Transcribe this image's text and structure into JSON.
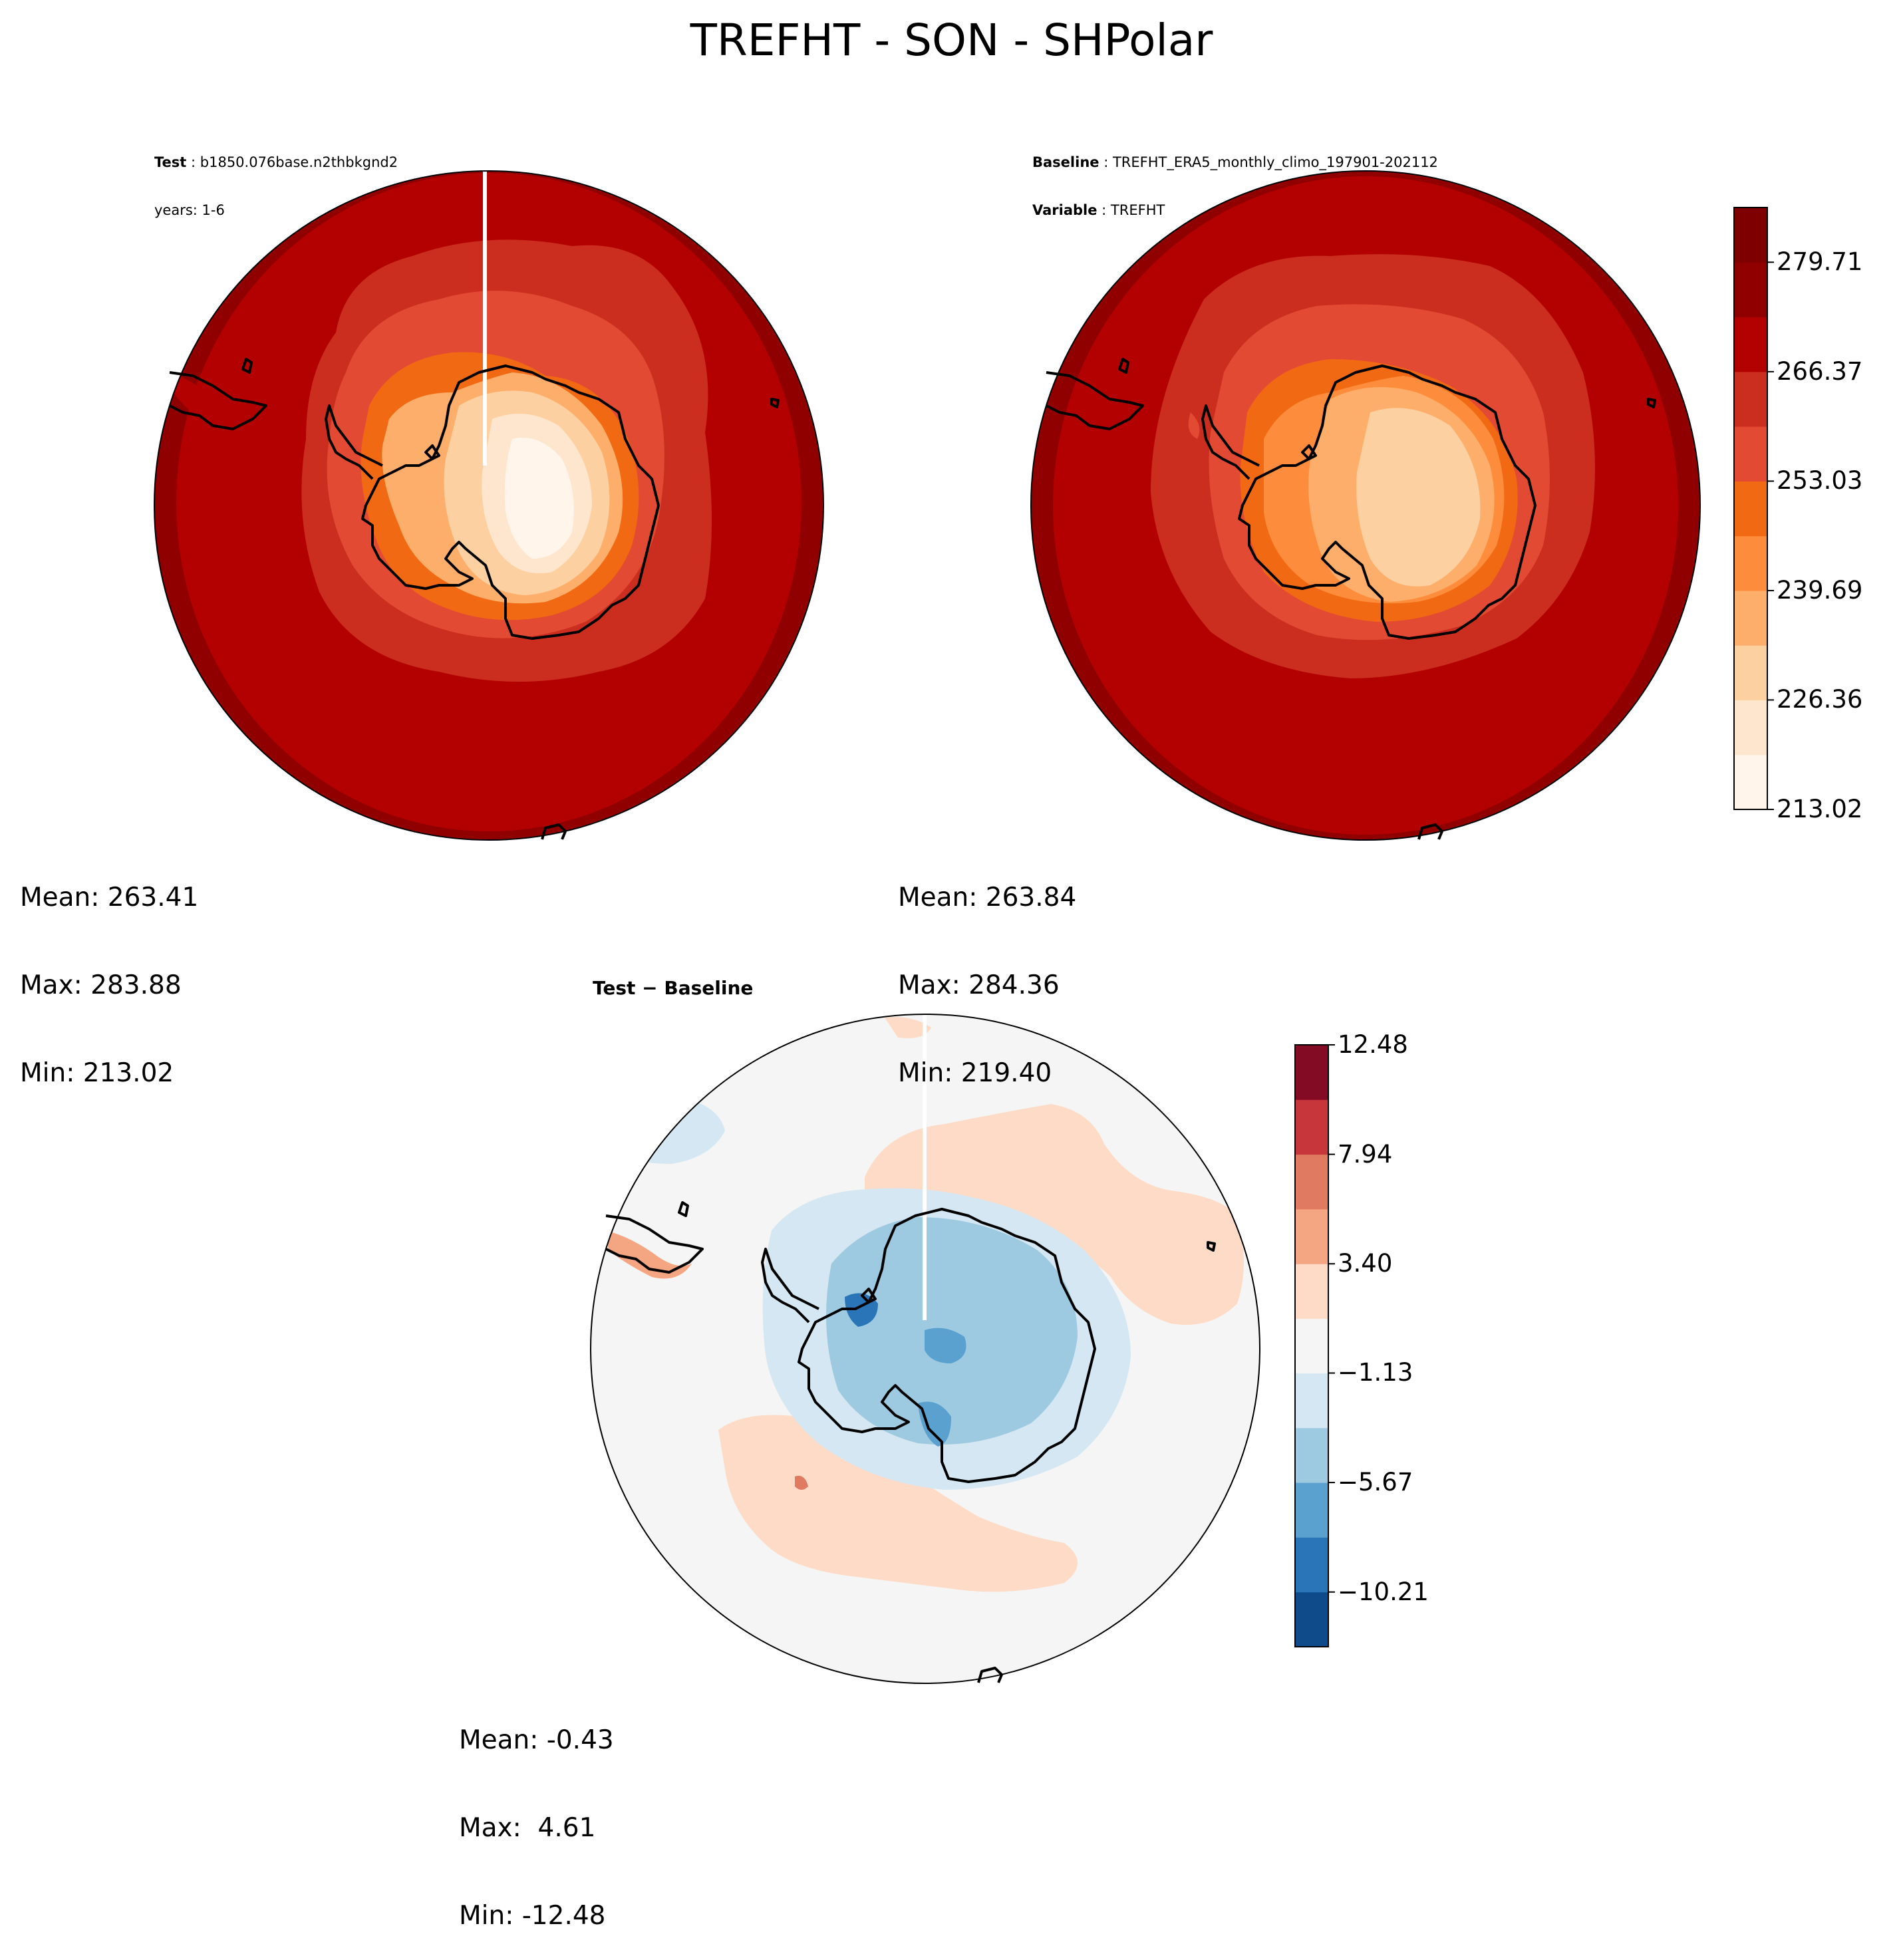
{
  "title": "TREFHT - SON - SHPolar",
  "panels": {
    "test": {
      "label_bold": "Test",
      "label_sep": " : ",
      "case": "b1850.076base.n2thbkgnd2",
      "years": "years: 1-6",
      "stats": [
        "Mean: 263.41",
        "Max: 283.88",
        "Min: 213.02"
      ]
    },
    "baseline": {
      "label_bold": "Baseline",
      "label_sep": " : ",
      "case": "TREFHT_ERA5_monthly_climo_197901-202112",
      "var_bold": "Variable",
      "var": "TREFHT",
      "stats": [
        "Mean: 263.84",
        "Max: 284.36",
        "Min: 219.40"
      ]
    },
    "diff": {
      "title": "Test − Baseline",
      "stats": [
        "Mean: -0.43",
        "Max:  4.61",
        "Min: -12.48"
      ]
    }
  },
  "chart_data": [
    {
      "type": "heatmap",
      "name": "Test",
      "projection": "south-polar-stereographic",
      "colormap": "Reds",
      "levels": [
        213.02,
        219.69,
        226.36,
        233.02,
        239.69,
        246.36,
        253.03,
        259.7,
        266.37,
        273.04,
        279.71,
        286.38
      ],
      "colors": [
        "#fff5eb",
        "#fee6ce",
        "#fdd0a2",
        "#fdae6b",
        "#fd8d3c",
        "#f16913",
        "#e34a33",
        "#cb2e1f",
        "#b30000",
        "#900000",
        "#7f0000"
      ],
      "stats": {
        "mean": 263.41,
        "max": 283.88,
        "min": 213.02
      }
    },
    {
      "type": "heatmap",
      "name": "Baseline",
      "projection": "south-polar-stereographic",
      "colormap": "Reds",
      "stats": {
        "mean": 263.84,
        "max": 284.36,
        "min": 219.4
      },
      "colorbar_ticks": [
        "279.71",
        "266.37",
        "253.03",
        "239.69",
        "226.36",
        "213.02"
      ],
      "colorbar_placement": "right"
    },
    {
      "type": "heatmap",
      "name": "Test − Baseline",
      "projection": "south-polar-stereographic",
      "colormap": "RdBu_r",
      "levels": [
        -12.48,
        -10.21,
        -7.94,
        -5.67,
        -3.4,
        -1.13,
        1.13,
        3.4,
        5.67,
        7.94,
        10.21,
        12.48
      ],
      "colors": [
        "#0f4b8a",
        "#2a75b8",
        "#5aa1cf",
        "#9ecae1",
        "#d5e7f2",
        "#f5f5f5",
        "#fddbc7",
        "#f4a582",
        "#e07b62",
        "#c6363b",
        "#840b24"
      ],
      "colorbar_ticks": [
        "12.48",
        "7.94",
        "3.40",
        "−1.13",
        "−5.67",
        "−10.21"
      ],
      "colorbar_placement": "right",
      "stats": {
        "mean": -0.43,
        "max": 4.61,
        "min": -12.48
      }
    }
  ]
}
